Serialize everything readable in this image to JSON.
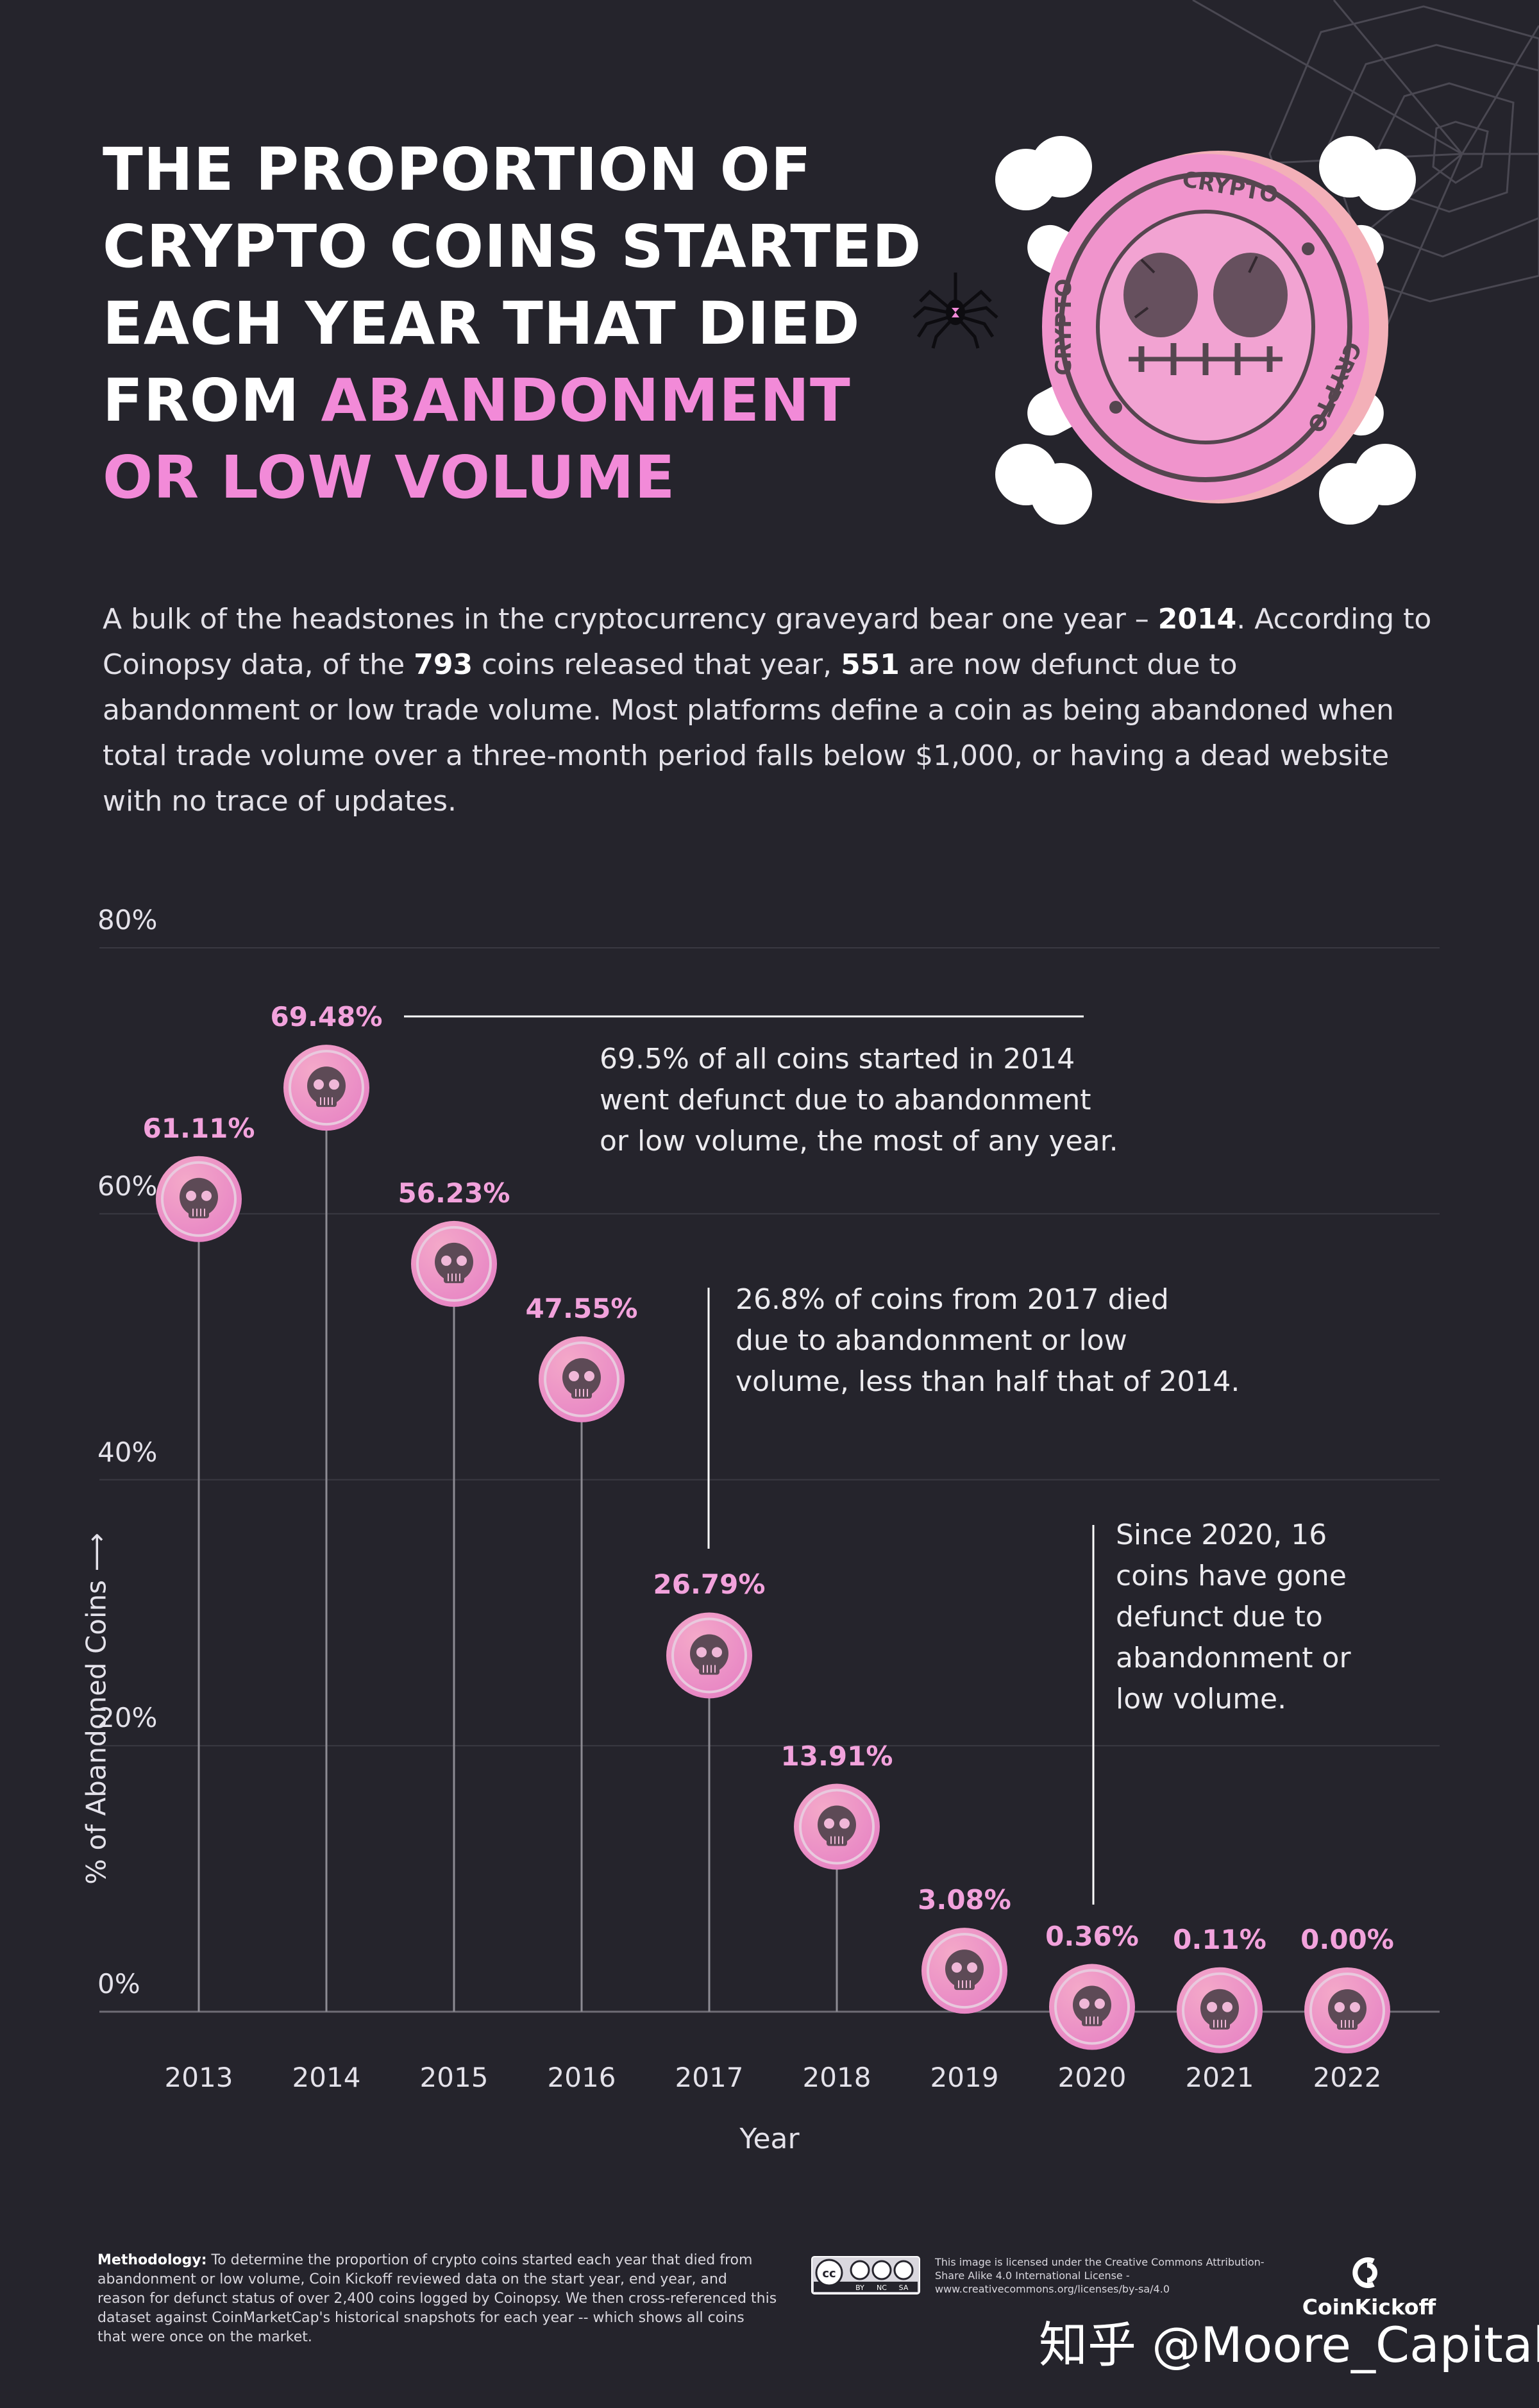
{
  "title": {
    "line1": "THE PROPORTION OF",
    "line2": "CRYPTO COINS STARTED",
    "line3": "EACH YEAR THAT DIED",
    "line4_prefix": "FROM ",
    "line4_highlight": "ABANDONMENT",
    "line5_highlight": "OR LOW VOLUME"
  },
  "logo_text": "CRYPTO",
  "intro": {
    "t1": "A bulk of the headstones in the cryptocurrency graveyard bear one year – ",
    "b1": "2014",
    "t2": ". According to Coinopsy data, of the ",
    "b2": "793",
    "t3": " coins released that year, ",
    "b3": "551",
    "t4": " are now defunct due to abandonment or low trade volume. Most platforms define a coin as being abandoned when total trade volume over a three-month period falls below $1,000, or having a dead website with no trace of updates."
  },
  "chart_data": {
    "type": "lollipop",
    "categories": [
      "2013",
      "2014",
      "2015",
      "2016",
      "2017",
      "2018",
      "2019",
      "2020",
      "2021",
      "2022"
    ],
    "values": [
      61.11,
      69.48,
      56.23,
      47.55,
      26.79,
      13.91,
      3.08,
      0.36,
      0.11,
      0.0
    ],
    "value_labels": [
      "61.11%",
      "69.48%",
      "56.23%",
      "47.55%",
      "26.79%",
      "13.91%",
      "3.08%",
      "0.36%",
      "0.11%",
      "0.00%"
    ],
    "ylim": [
      0,
      80
    ],
    "yticks": [
      "0%",
      "20%",
      "40%",
      "60%",
      "80%"
    ],
    "ylabel": "% of Abandoned Coins ⟶",
    "xlabel": "Year",
    "grid": true,
    "marker": "skull-coin",
    "colors": {
      "marker_light": "#f4a9c9",
      "marker_dark": "#e784c4",
      "label": "#f2a2dc",
      "line": "#8d8b93"
    },
    "annotations": [
      {
        "l1": "69.5% of all coins started in 2014",
        "l2": "went defunct due to abandonment",
        "l3": "or low volume, the most of any year."
      },
      {
        "l1": "26.8% of coins from 2017 died",
        "l2": "due to abandonment or low",
        "l3": "volume, less than half that of 2014."
      },
      {
        "l1": "Since 2020, 16",
        "l2": "coins have gone",
        "l3": "defunct due to",
        "l4": "abandonment or",
        "l5": "low volume."
      }
    ]
  },
  "footer": {
    "method_label": "Methodology:",
    "method_text": " To determine the proportion of crypto coins started each year that died from abandonment or low volume, Coin Kickoff reviewed data on the start year, end year, and reason for defunct status of over 2,400 coins logged by Coinopsy. We then cross-referenced this dataset against CoinMarketCap's historical snapshots for each year -- which shows all coins that were once on the market.",
    "cc_badge": [
      "cc",
      "BY",
      "NC",
      "SA"
    ],
    "license_text": "This image is licensed under the Creative Commons Attribution-Share Alike 4.0 International License - www.creativecommons.org/licenses/by-sa/4.0",
    "brand": "CoinKickoff",
    "watermark": "知乎 @Moore_Capital"
  }
}
